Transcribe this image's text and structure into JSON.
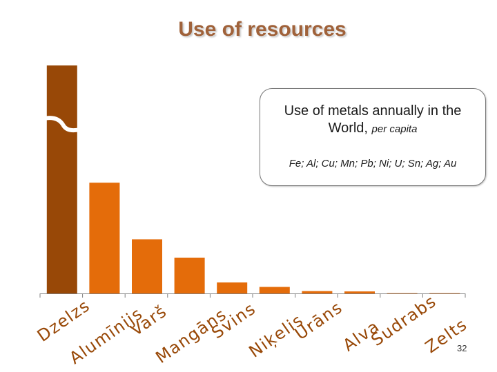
{
  "slide": {
    "title": "Use of resources",
    "page_number": "32"
  },
  "callout": {
    "line1": "Use of metals annually in the",
    "line2": "World, ",
    "line2_italic": "per capita",
    "metals": "Fe; Al; Cu; Mn; Pb; Ni; U; Sn; Ag; Au"
  },
  "chart_data": {
    "type": "bar",
    "title": "",
    "xlabel": "",
    "ylabel": "",
    "ylim": [
      0,
      56
    ],
    "axis_break_on_first_bar": true,
    "grid": false,
    "categories": [
      "Dzelzs",
      "Alumīnijs",
      "Varš",
      "Mangāns",
      "Svins",
      "Niķelis",
      "Urāns",
      "Alva",
      "Sudrabs",
      "Zelts"
    ],
    "values": [
      56,
      27.2,
      13.3,
      8.8,
      2.7,
      1.6,
      0.6,
      0.5,
      0.1,
      0.1
    ],
    "colors": {
      "highlight": "#984807",
      "bars": "#e46c0a",
      "axis": "#7f7f7f",
      "labels": "#984807"
    }
  }
}
